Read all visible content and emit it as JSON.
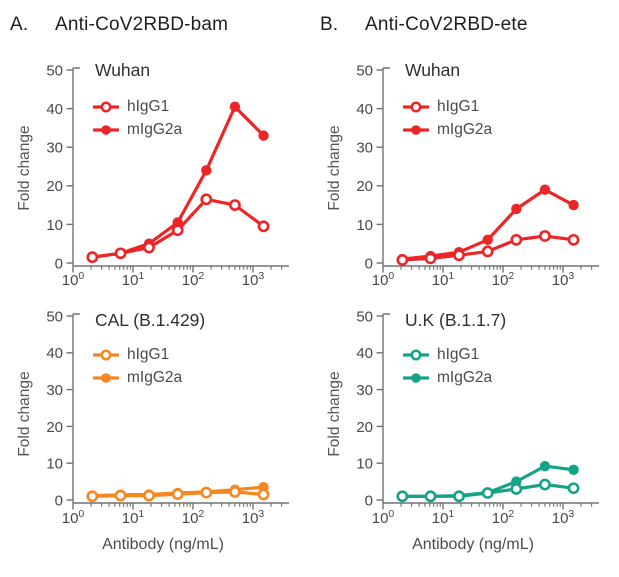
{
  "figure": {
    "panels": [
      {
        "letter": "A.",
        "title": "Anti-CoV2RBD-bam"
      },
      {
        "letter": "B.",
        "title": "Anti-CoV2RBD-ete"
      }
    ]
  },
  "chart_data": [
    {
      "type": "line",
      "panel": "A",
      "title": "Wuhan",
      "color": "#EC2527",
      "ylabel": "Fold change",
      "xscale": "log",
      "xlim": [
        1,
        4000
      ],
      "ylim": [
        0,
        50
      ],
      "yticks": [
        0,
        10,
        20,
        30,
        40,
        50
      ],
      "xticks": [
        1,
        10,
        100,
        1000
      ],
      "x": [
        2.1,
        6.2,
        18.5,
        55.6,
        166.7,
        500,
        1500
      ],
      "series": [
        {
          "name": "hIgG1",
          "marker": "open",
          "values": [
            1.5,
            2.5,
            4,
            8.5,
            16.5,
            15,
            9.5
          ]
        },
        {
          "name": "mIgG2a",
          "marker": "filled",
          "values": [
            1.5,
            2.5,
            5,
            10.5,
            24,
            40.5,
            33
          ]
        }
      ]
    },
    {
      "type": "line",
      "panel": "B",
      "title": "Wuhan",
      "color": "#EC2527",
      "ylabel": "Fold change",
      "xscale": "log",
      "xlim": [
        1,
        4000
      ],
      "ylim": [
        0,
        50
      ],
      "yticks": [
        0,
        10,
        20,
        30,
        40,
        50
      ],
      "xticks": [
        1,
        10,
        100,
        1000
      ],
      "x": [
        2.1,
        6.2,
        18.5,
        55.6,
        166.7,
        500,
        1500
      ],
      "series": [
        {
          "name": "hIgG1",
          "marker": "open",
          "values": [
            0.8,
            1.2,
            2,
            3,
            6,
            7,
            6
          ]
        },
        {
          "name": "mIgG2a",
          "marker": "filled",
          "values": [
            1,
            1.8,
            2.8,
            6,
            14,
            19,
            15
          ]
        }
      ]
    },
    {
      "type": "line",
      "panel": "A",
      "title": "CAL (B.1.429)",
      "color": "#F6861F",
      "ylabel": "Fold change",
      "xlabel": "Antibody (ng/mL)",
      "xscale": "log",
      "xlim": [
        1,
        4000
      ],
      "ylim": [
        0,
        50
      ],
      "yticks": [
        0,
        10,
        20,
        30,
        40,
        50
      ],
      "xticks": [
        1,
        10,
        100,
        1000
      ],
      "x": [
        2.1,
        6.2,
        18.5,
        55.6,
        166.7,
        500,
        1500
      ],
      "series": [
        {
          "name": "hIgG1",
          "marker": "open",
          "values": [
            1,
            1.2,
            1.2,
            1.6,
            2,
            2.2,
            1.5
          ]
        },
        {
          "name": "mIgG2a",
          "marker": "filled",
          "values": [
            1.2,
            1.4,
            1.5,
            1.9,
            2.2,
            2.8,
            3.5
          ]
        }
      ]
    },
    {
      "type": "line",
      "panel": "B",
      "title": "U.K (B.1.1.7)",
      "color": "#14A386",
      "ylabel": "Fold change",
      "xlabel": "Antibody (ng/mL)",
      "xscale": "log",
      "xlim": [
        1,
        4000
      ],
      "ylim": [
        0,
        50
      ],
      "yticks": [
        0,
        10,
        20,
        30,
        40,
        50
      ],
      "xticks": [
        1,
        10,
        100,
        1000
      ],
      "x": [
        2.1,
        6.2,
        18.5,
        55.6,
        166.7,
        500,
        1500
      ],
      "series": [
        {
          "name": "hIgG1",
          "marker": "open",
          "values": [
            1,
            1,
            1,
            1.9,
            3,
            4.2,
            3.2
          ]
        },
        {
          "name": "mIgG2a",
          "marker": "filled",
          "values": [
            1,
            1,
            1.2,
            2,
            5,
            9.2,
            8.2
          ]
        }
      ]
    }
  ]
}
